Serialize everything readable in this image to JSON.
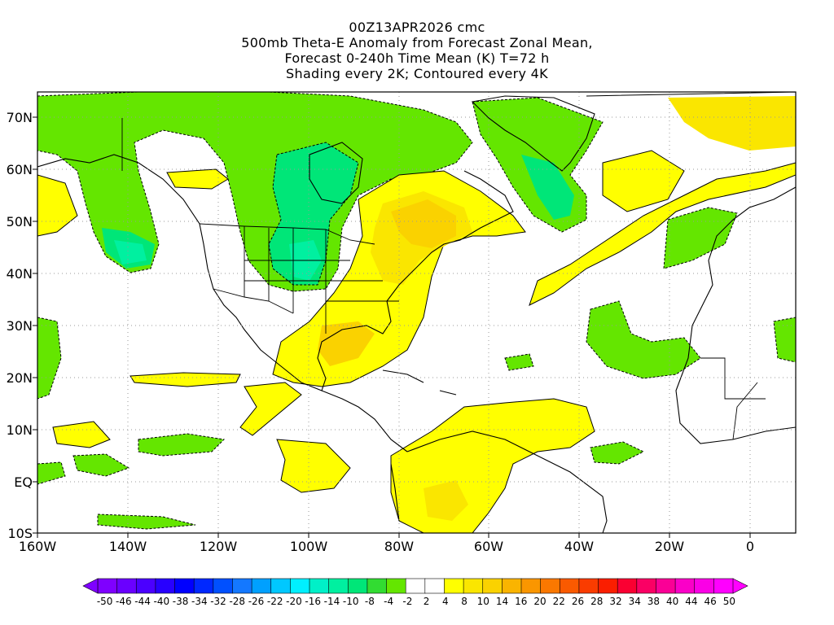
{
  "title": {
    "line1": "00Z13APR2026 cmc",
    "line2": "500mb Theta-E Anomaly from Forecast Zonal Mean,",
    "line3": "Forecast 0-240h Time Mean (K) T=72 h",
    "line4": "Shading every 2K; Contoured every 4K"
  },
  "lat_labels": [
    "70N",
    "60N",
    "50N",
    "40N",
    "30N",
    "20N",
    "10N",
    "EQ",
    "10S"
  ],
  "lon_labels": [
    "160W",
    "140W",
    "120W",
    "100W",
    "80W",
    "60W",
    "40W",
    "20W",
    "0"
  ],
  "colorbar": {
    "labels": [
      "-50",
      "-46",
      "-44",
      "-40",
      "-38",
      "-34",
      "-32",
      "-28",
      "-26",
      "-22",
      "-20",
      "-16",
      "-14",
      "-10",
      "-8",
      "-4",
      "-2",
      "2",
      "4",
      "8",
      "10",
      "14",
      "16",
      "20",
      "22",
      "26",
      "28",
      "32",
      "34",
      "38",
      "40",
      "44",
      "46",
      "50"
    ],
    "colors": [
      "#7f00ff",
      "#6a00ff",
      "#4b00ff",
      "#2800ff",
      "#0000ff",
      "#0028ff",
      "#0050ff",
      "#1478ff",
      "#00a0ff",
      "#00c8ff",
      "#00f0ff",
      "#00f0c8",
      "#00f0a0",
      "#00e678",
      "#32dc32",
      "#64e600",
      "#ffffff",
      "#ffffff",
      "#ffff00",
      "#fae600",
      "#fad200",
      "#fab400",
      "#fa9600",
      "#fa7800",
      "#fa5a00",
      "#fa3c00",
      "#fa1e00",
      "#fa0032",
      "#fa0064",
      "#fa0096",
      "#fa00c8",
      "#fa00e6",
      "#ff00ff"
    ]
  }
}
